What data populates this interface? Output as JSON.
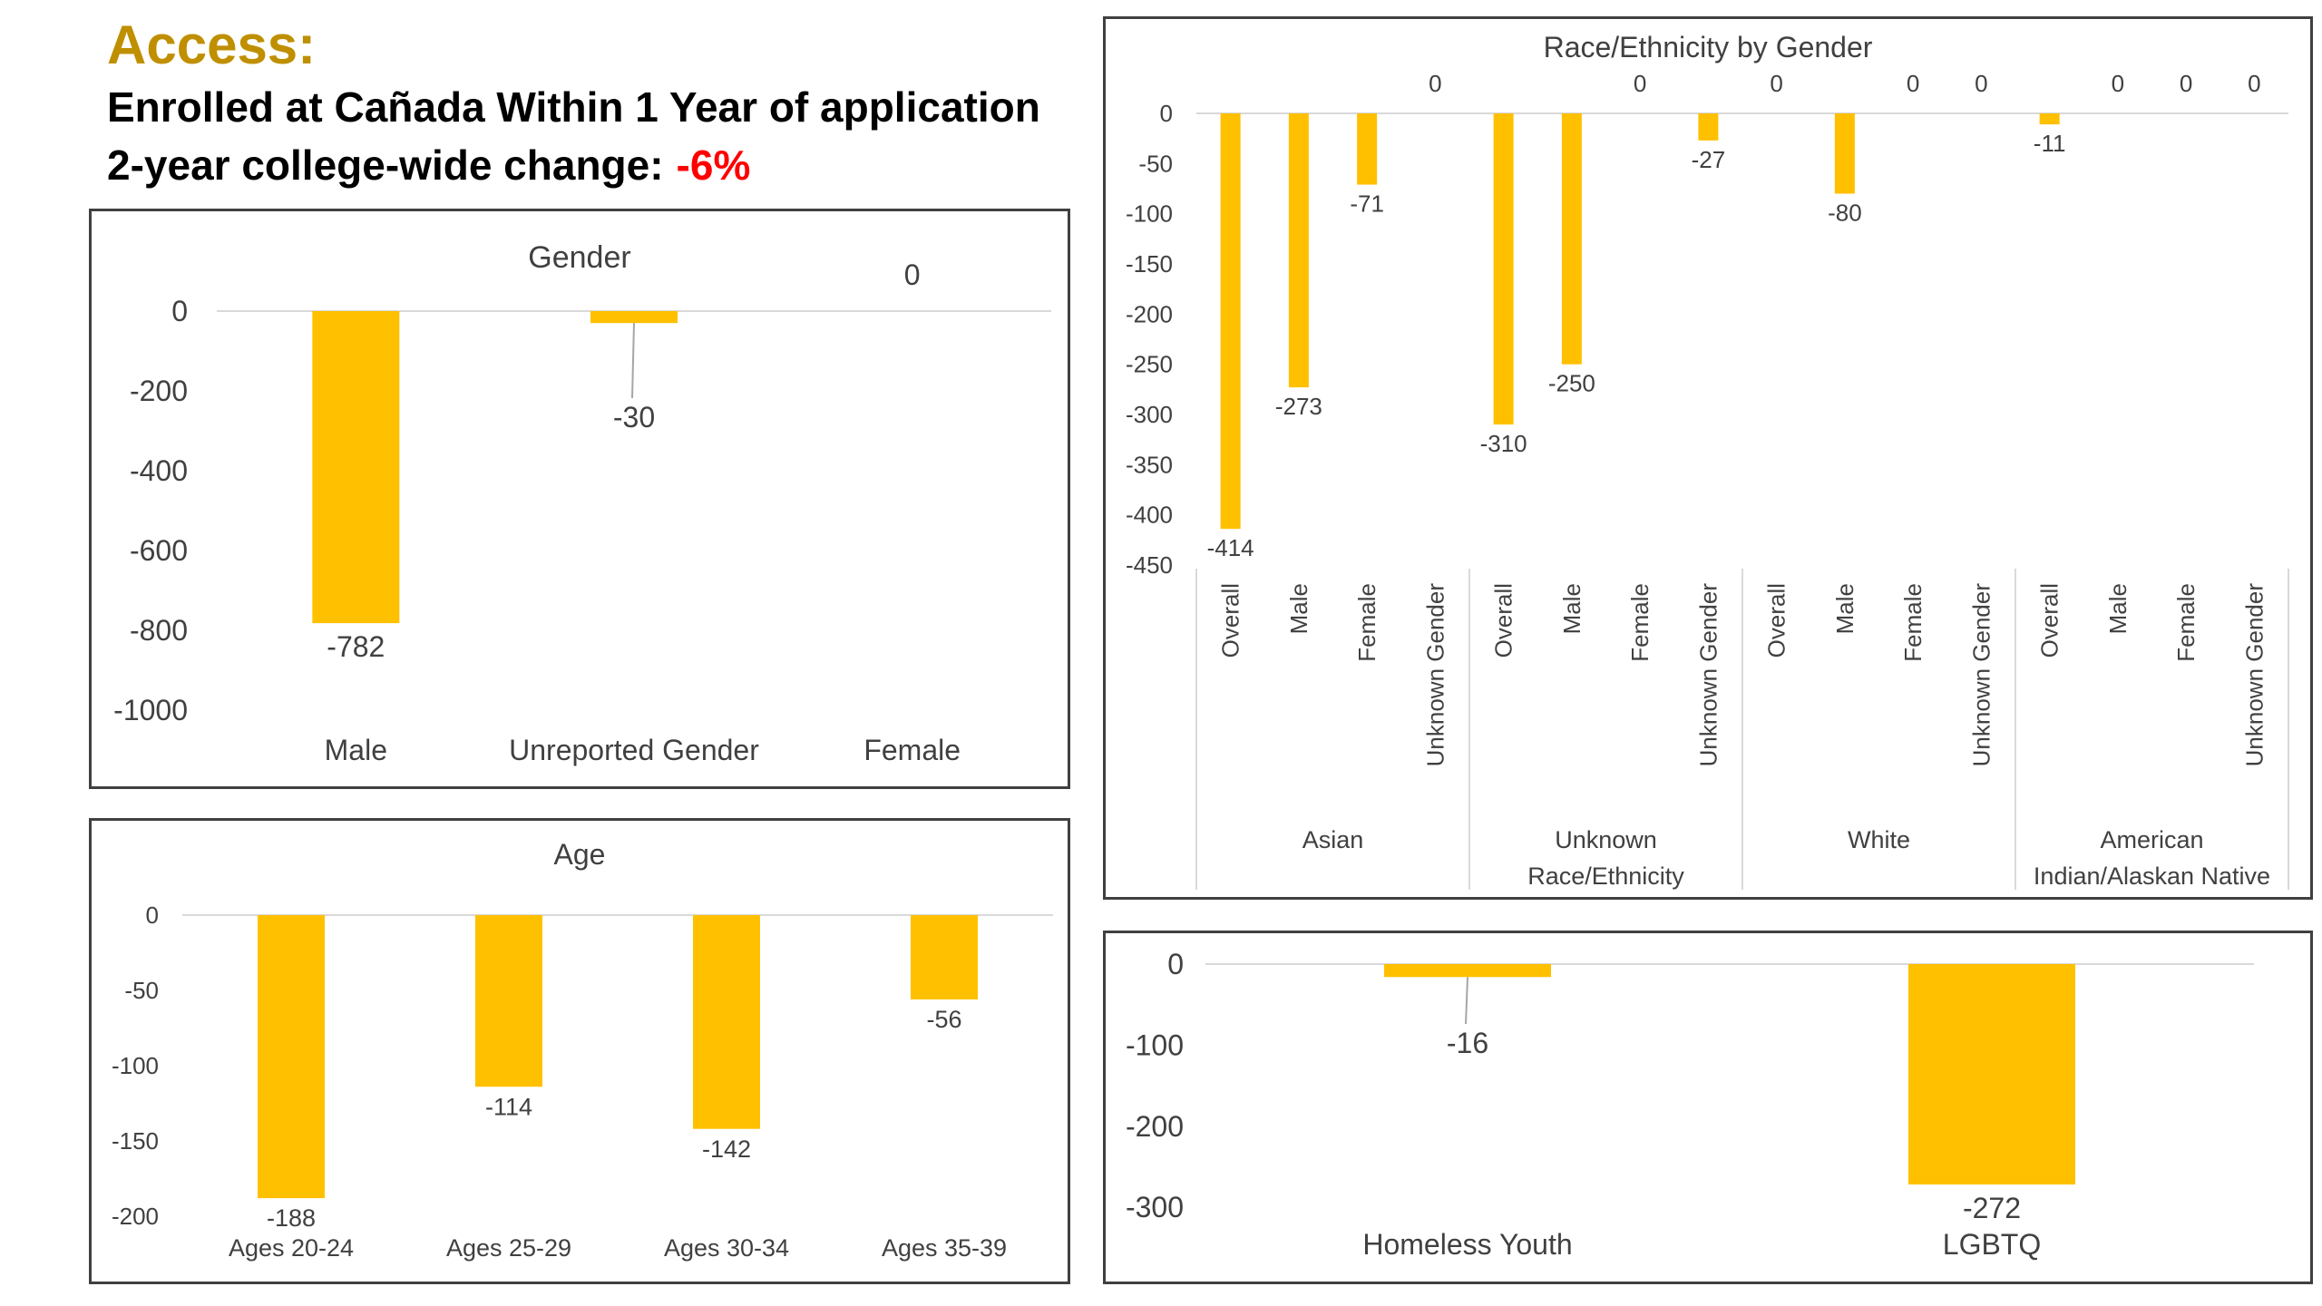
{
  "header": {
    "title": "Access:",
    "subtitle": "Enrolled at Cañada Within 1 Year of application",
    "change_label": "2-year college-wide change:",
    "change_value": "-6%"
  },
  "colors": {
    "bar": "#ffc000",
    "title": "#bf8f00",
    "change": "#ff0000",
    "axis": "#d9d9d9"
  },
  "chart_data": [
    {
      "id": "gender",
      "type": "bar",
      "title": "Gender",
      "categories": [
        "Male",
        "Unreported Gender",
        "Female"
      ],
      "values": [
        -782,
        -30,
        0
      ],
      "value_labels": [
        "-782",
        "-30",
        "0"
      ],
      "ylim": [
        -1000,
        0
      ],
      "yticks": [
        0,
        -200,
        -400,
        -600,
        -800,
        -1000
      ],
      "grid": false
    },
    {
      "id": "age",
      "type": "bar",
      "title": "Age",
      "categories": [
        "Ages 20-24",
        "Ages 25-29",
        "Ages 30-34",
        "Ages 35-39"
      ],
      "values": [
        -188,
        -114,
        -142,
        -56
      ],
      "value_labels": [
        "-188",
        "-114",
        "-142",
        "-56"
      ],
      "ylim": [
        -200,
        0
      ],
      "yticks": [
        0,
        -50,
        -100,
        -150,
        -200
      ],
      "grid": false
    },
    {
      "id": "race",
      "type": "bar",
      "title": "Race/Ethnicity by Gender",
      "groups": [
        "Asian",
        "Unknown Race/Ethnicity",
        "White",
        "American Indian/Alaskan Native"
      ],
      "group_lines": [
        [
          "Asian"
        ],
        [
          "Unknown",
          "Race/Ethnicity"
        ],
        [
          "White"
        ],
        [
          "American",
          "Indian/Alaskan Native"
        ]
      ],
      "subcategories": [
        "Overall",
        "Male",
        "Female",
        "Unknown Gender"
      ],
      "values": [
        -414,
        -273,
        -71,
        0,
        -310,
        -250,
        0,
        -27,
        0,
        -80,
        0,
        0,
        -11,
        0,
        0,
        0
      ],
      "value_labels": [
        "-414",
        "-273",
        "-71",
        "0",
        "-310",
        "-250",
        "0",
        "-27",
        "0",
        "-80",
        "0",
        "0",
        "-11",
        "0",
        "0",
        "0"
      ],
      "ylim": [
        -450,
        0
      ],
      "yticks": [
        0,
        -50,
        -100,
        -150,
        -200,
        -250,
        -300,
        -350,
        -400,
        -450
      ],
      "grid": false
    },
    {
      "id": "special",
      "type": "bar",
      "title": "",
      "categories": [
        "Homeless Youth",
        "LGBTQ"
      ],
      "values": [
        -16,
        -272
      ],
      "value_labels": [
        "-16",
        "-272"
      ],
      "ylim": [
        -300,
        0
      ],
      "yticks": [
        0,
        -100,
        -200,
        -300
      ],
      "grid": false
    }
  ]
}
